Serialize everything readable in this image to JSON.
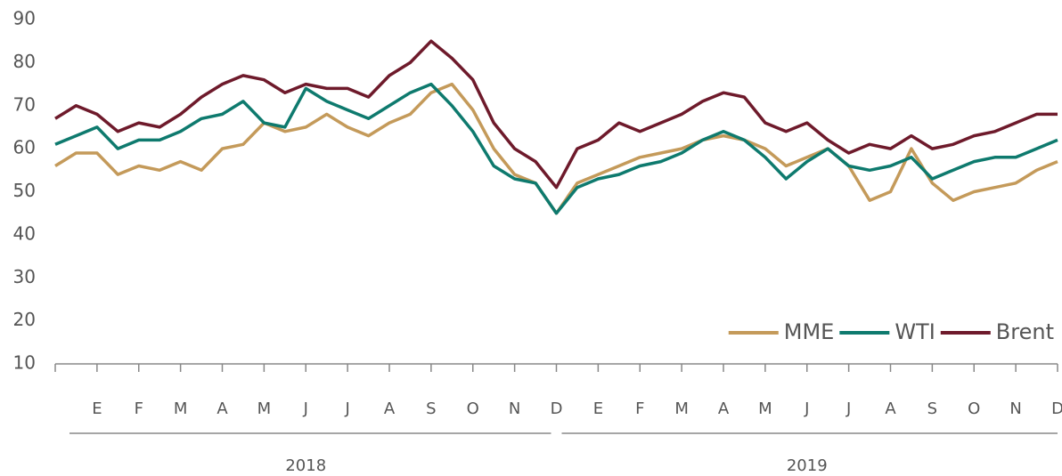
{
  "chart_data": {
    "type": "line",
    "categories": [
      null,
      null,
      "E",
      null,
      "F",
      null,
      "M",
      null,
      "A",
      null,
      "M",
      null,
      "J",
      null,
      "J",
      null,
      "A",
      null,
      "S",
      null,
      "O",
      null,
      "N",
      null,
      "D",
      null,
      "E",
      null,
      "F",
      null,
      "M",
      null,
      "A",
      null,
      "M",
      null,
      "J",
      null,
      "J",
      null,
      "A",
      null,
      "S",
      null,
      "O",
      null,
      "N",
      null,
      "D"
    ],
    "x_groups": [
      "2018",
      "2019"
    ],
    "series": [
      {
        "name": "MME",
        "color": "#c49a5a",
        "values": [
          56,
          59,
          59,
          54,
          56,
          55,
          57,
          55,
          60,
          61,
          66,
          64,
          65,
          68,
          65,
          63,
          66,
          68,
          73,
          75,
          69,
          60,
          54,
          52,
          45,
          52,
          54,
          56,
          58,
          59,
          60,
          62,
          63,
          62,
          60,
          56,
          58,
          60,
          56,
          48,
          50,
          60,
          52,
          48,
          50,
          51,
          52,
          55,
          57
        ]
      },
      {
        "name": "WTI",
        "color": "#0e7a6e",
        "values": [
          61,
          63,
          65,
          60,
          62,
          62,
          64,
          67,
          68,
          71,
          66,
          65,
          74,
          71,
          69,
          67,
          70,
          73,
          75,
          70,
          64,
          56,
          53,
          52,
          45,
          51,
          53,
          54,
          56,
          57,
          59,
          62,
          64,
          62,
          58,
          53,
          57,
          60,
          56,
          55,
          56,
          58,
          53,
          55,
          57,
          58,
          58,
          60,
          62
        ]
      },
      {
        "name": "Brent",
        "color": "#6e1a2b",
        "values": [
          67,
          70,
          68,
          64,
          66,
          65,
          68,
          72,
          75,
          77,
          76,
          73,
          75,
          74,
          74,
          72,
          77,
          80,
          85,
          81,
          76,
          66,
          60,
          57,
          51,
          60,
          62,
          66,
          64,
          66,
          68,
          71,
          73,
          72,
          66,
          64,
          66,
          62,
          59,
          61,
          60,
          63,
          60,
          61,
          63,
          64,
          66,
          68,
          68
        ]
      }
    ],
    "ylim": [
      10,
      90
    ],
    "yticks": [
      10,
      20,
      30,
      40,
      50,
      60,
      70,
      80,
      90
    ],
    "legend": "bottom-right"
  }
}
